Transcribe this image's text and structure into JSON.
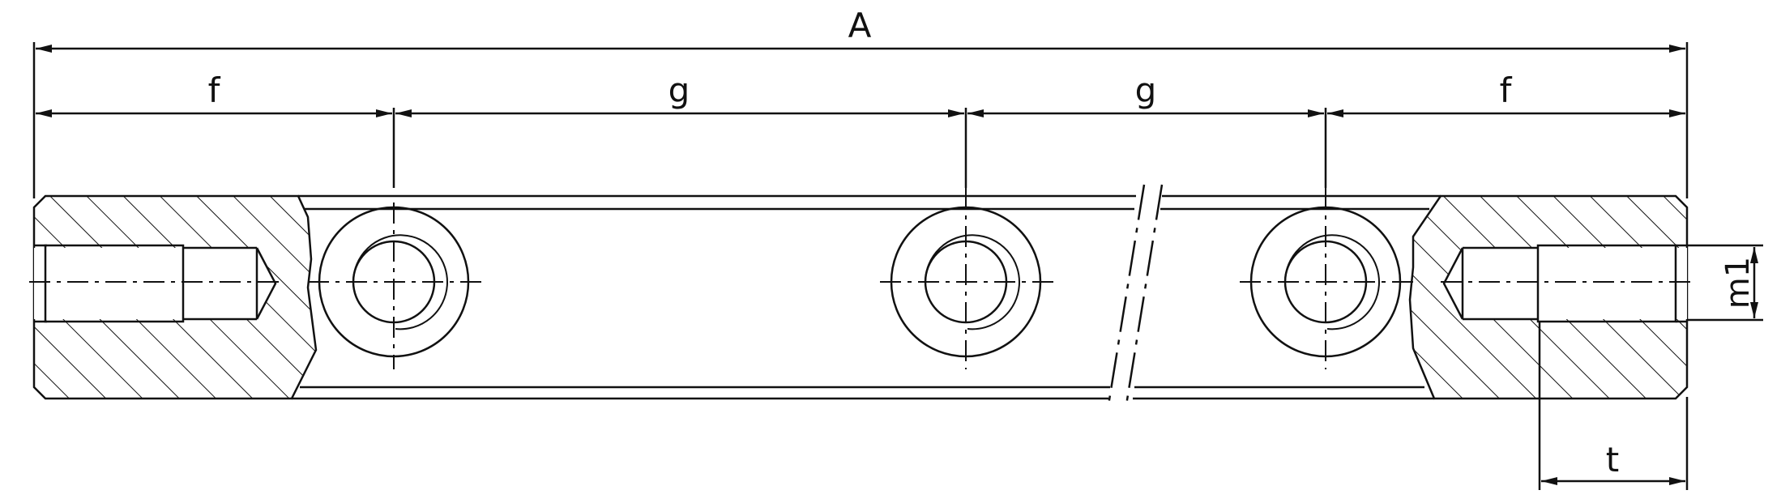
{
  "drawing": {
    "dimensions": {
      "overall": "A",
      "end_left": "f",
      "pitch_left": "g",
      "pitch_right": "g",
      "end_right": "f",
      "thread_diameter": "m1",
      "thread_depth": "t"
    }
  },
  "colors": {
    "line": "#111111",
    "background": "#ffffff"
  }
}
